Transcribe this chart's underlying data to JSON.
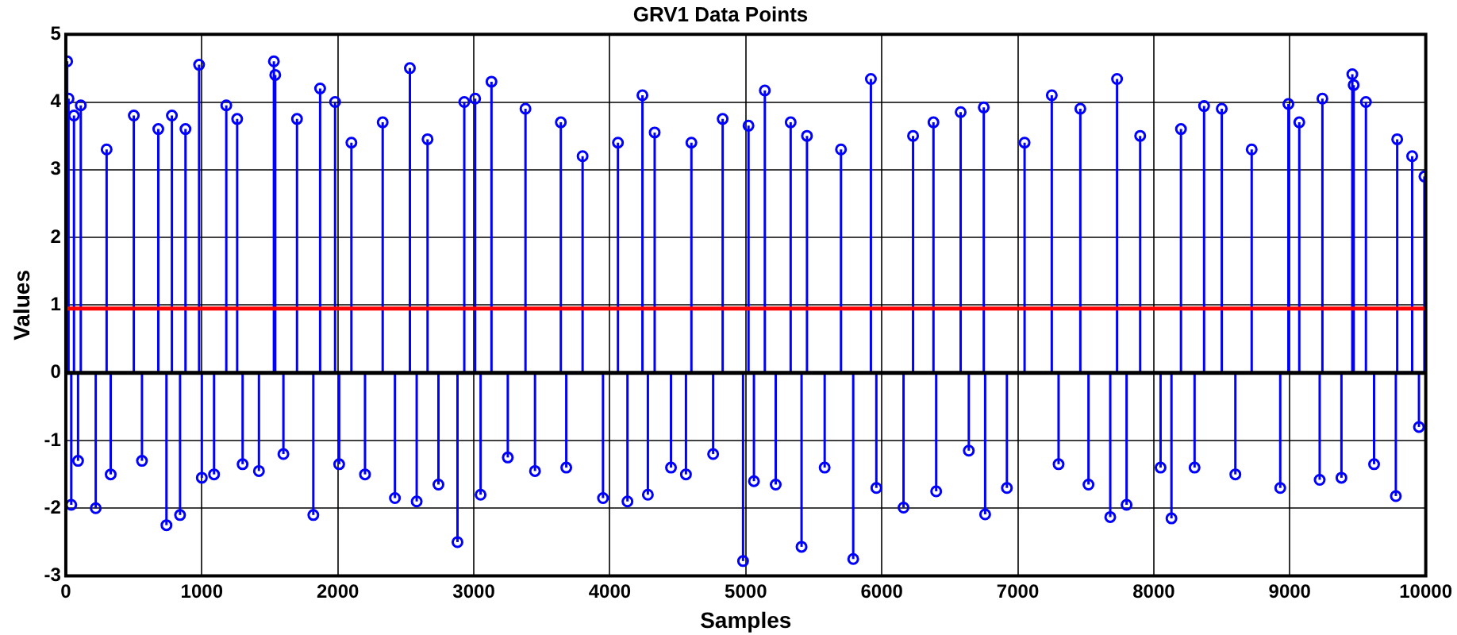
{
  "chart_data": {
    "type": "lollipop",
    "title": "GRV1 Data Points",
    "xlabel": "Samples",
    "ylabel": "Values",
    "x": [
      10,
      20,
      40,
      60,
      90,
      110,
      220,
      300,
      330,
      500,
      560,
      680,
      740,
      780,
      840,
      880,
      980,
      1000,
      1090,
      1180,
      1260,
      1300,
      1420,
      1530,
      1540,
      1600,
      1700,
      1820,
      1870,
      1980,
      2010,
      2100,
      2200,
      2330,
      2420,
      2530,
      2580,
      2660,
      2740,
      2880,
      2930,
      3010,
      3050,
      3130,
      3250,
      3380,
      3450,
      3640,
      3680,
      3800,
      3950,
      4060,
      4130,
      4240,
      4280,
      4330,
      4450,
      4560,
      4600,
      4760,
      4830,
      4980,
      5020,
      5060,
      5140,
      5220,
      5330,
      5410,
      5450,
      5580,
      5700,
      5790,
      5920,
      5960,
      6160,
      6230,
      6380,
      6400,
      6580,
      6640,
      6750,
      6760,
      6920,
      7050,
      7250,
      7300,
      7460,
      7520,
      7680,
      7730,
      7800,
      7900,
      8050,
      8130,
      8200,
      8300,
      8370,
      8500,
      8600,
      8720,
      8930,
      8990,
      9070,
      9220,
      9240,
      9380,
      9460,
      9470,
      9560,
      9620,
      9780,
      9790,
      9900,
      9950,
      9990
    ],
    "values": [
      4.6,
      4.05,
      -1.95,
      3.8,
      -1.3,
      3.95,
      -2.0,
      3.3,
      -1.5,
      3.8,
      -1.3,
      3.6,
      -2.25,
      3.8,
      -2.1,
      3.6,
      4.55,
      -1.55,
      -1.5,
      3.95,
      3.75,
      -1.35,
      -1.45,
      4.6,
      4.4,
      -1.2,
      3.75,
      -2.1,
      4.2,
      4.0,
      -1.35,
      3.4,
      -1.5,
      3.7,
      -1.85,
      4.5,
      -1.9,
      3.45,
      -1.65,
      -2.5,
      4.0,
      4.05,
      -1.8,
      4.3,
      -1.25,
      3.9,
      -1.45,
      3.7,
      -1.4,
      3.2,
      -1.85,
      3.4,
      -1.9,
      4.1,
      -1.8,
      3.55,
      -1.4,
      -1.5,
      3.4,
      -1.2,
      3.75,
      -2.78,
      3.65,
      -1.6,
      4.17,
      -1.65,
      3.7,
      -2.57,
      3.5,
      -1.4,
      3.3,
      -2.75,
      4.34,
      -1.7,
      -1.99,
      3.5,
      3.7,
      -1.75,
      3.85,
      -1.15,
      3.92,
      -2.09,
      -1.7,
      3.4,
      4.1,
      -1.35,
      3.9,
      -1.65,
      -2.13,
      4.34,
      -1.95,
      3.5,
      -1.4,
      -2.15,
      3.6,
      -1.4,
      3.94,
      3.9,
      -1.5,
      3.3,
      -1.7,
      3.97,
      3.7,
      -1.58,
      4.05,
      -1.55,
      4.41,
      4.25,
      4.0,
      -1.35,
      -1.82,
      3.45,
      3.2,
      -0.8,
      2.9
    ],
    "color": "#0000ff",
    "marker": "circle",
    "xlim": [
      0,
      10000
    ],
    "xticks": [
      0,
      1000,
      2000,
      3000,
      4000,
      5000,
      6000,
      7000,
      8000,
      9000,
      10000
    ],
    "ylim": [
      -3,
      5
    ],
    "yticks": [
      -3,
      -2,
      -1,
      0,
      1,
      2,
      3,
      4,
      5
    ],
    "grid": true,
    "ref_lines": [
      {
        "axis": "y",
        "value": 0.95,
        "color": "#ff0000"
      },
      {
        "axis": "y",
        "value": 0,
        "color": "#000000"
      }
    ]
  }
}
